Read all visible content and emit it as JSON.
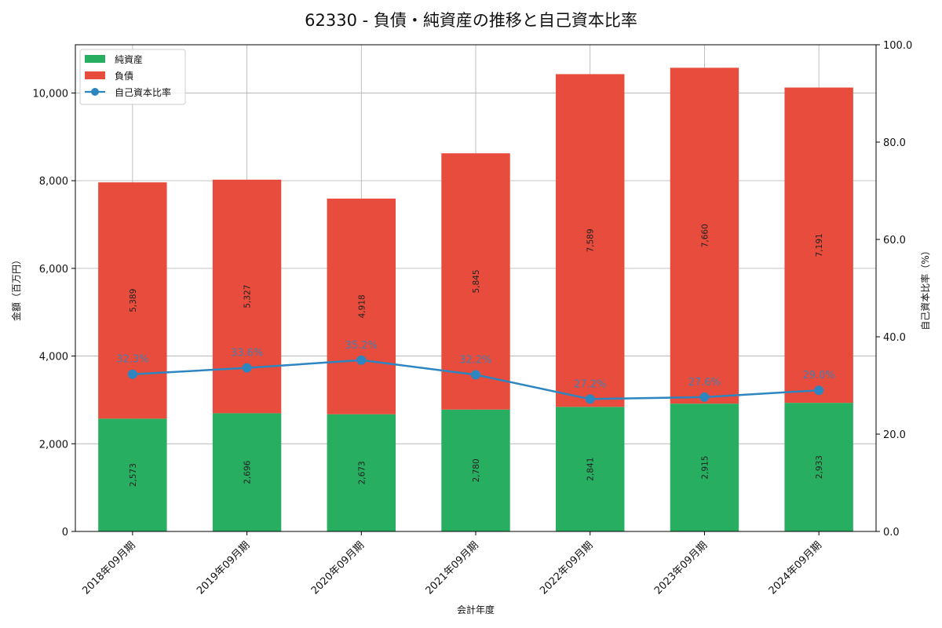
{
  "chart_data": {
    "type": "bar",
    "title": "62330 - 負債・純資産の推移と自己資本比率",
    "xlabel": "会計年度",
    "ylabel": "金額（百万円）",
    "y2label": "自己資本比率（%）",
    "ylim": [
      0,
      11100
    ],
    "y2lim": [
      0,
      100
    ],
    "yticks": [
      0,
      2000,
      4000,
      6000,
      8000,
      10000
    ],
    "ytick_labels": [
      "0",
      "2,000",
      "4,000",
      "6,000",
      "8,000",
      "10,000"
    ],
    "y2ticks": [
      0,
      20,
      40,
      60,
      80,
      100
    ],
    "y2tick_labels": [
      "0.0",
      "20.0",
      "40.0",
      "60.0",
      "80.0",
      "100.0"
    ],
    "categories": [
      "2018年09月期",
      "2019年09月期",
      "2020年09月期",
      "2021年09月期",
      "2022年09月期",
      "2023年09月期",
      "2024年09月期"
    ],
    "series": [
      {
        "name": "純資産",
        "kind": "bar",
        "color": "#27ae60",
        "values": [
          2573,
          2696,
          2673,
          2780,
          2841,
          2915,
          2933
        ],
        "labels": [
          "2,573",
          "2,696",
          "2,673",
          "2,780",
          "2,841",
          "2,915",
          "2,933"
        ]
      },
      {
        "name": "負債",
        "kind": "bar",
        "color": "#e74c3c",
        "values": [
          5389,
          5327,
          4918,
          5845,
          7589,
          7660,
          7191
        ],
        "labels": [
          "5,389",
          "5,327",
          "4,918",
          "5,845",
          "7,589",
          "7,660",
          "7,191"
        ]
      },
      {
        "name": "自己資本比率",
        "kind": "line",
        "axis": "right",
        "color": "#2e86c1",
        "values": [
          32.3,
          33.6,
          35.2,
          32.2,
          27.2,
          27.6,
          29.0
        ],
        "labels": [
          "32.3%",
          "33.6%",
          "35.2%",
          "32.2%",
          "27.2%",
          "27.6%",
          "29.0%"
        ]
      }
    ],
    "legend": "top-left",
    "grid": true
  }
}
